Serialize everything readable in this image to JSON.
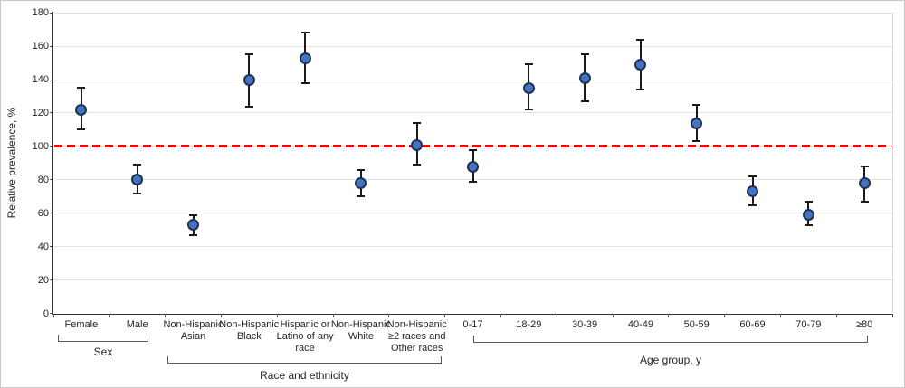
{
  "chart_data": {
    "type": "scatter",
    "title": "",
    "xlabel": "",
    "ylabel": "Relative prevalence, %",
    "ylim": [
      0,
      180
    ],
    "y_ticks": [
      0,
      20,
      40,
      60,
      80,
      100,
      120,
      140,
      160,
      180
    ],
    "grid": true,
    "legend": "none",
    "reference_line": {
      "y": 100,
      "color": "#FF0000",
      "style": "dashed"
    },
    "marker": {
      "fill": "#4472C4",
      "stroke": "#1F3250"
    },
    "groups": [
      {
        "label": "Sex",
        "start": 0,
        "end": 1
      },
      {
        "label": "Race and ethnicity",
        "start": 2,
        "end": 6
      },
      {
        "label": "Age group, y",
        "start": 7,
        "end": 14
      }
    ],
    "points": [
      {
        "category": "Female",
        "label_lines": [
          "Female"
        ],
        "value": 122,
        "ci_low": 110,
        "ci_high": 135
      },
      {
        "category": "Male",
        "label_lines": [
          "Male"
        ],
        "value": 80,
        "ci_low": 72,
        "ci_high": 89
      },
      {
        "category": "Non-Hispanic Asian",
        "label_lines": [
          "Non-Hispanic",
          "Asian"
        ],
        "value": 53,
        "ci_low": 47,
        "ci_high": 59
      },
      {
        "category": "Non-Hispanic Black",
        "label_lines": [
          "Non-Hispanic",
          "Black"
        ],
        "value": 140,
        "ci_low": 124,
        "ci_high": 155
      },
      {
        "category": "Hispanic or Latino of any race",
        "label_lines": [
          "Hispanic or",
          "Latino of any",
          "race"
        ],
        "value": 153,
        "ci_low": 138,
        "ci_high": 168
      },
      {
        "category": "Non-Hispanic White",
        "label_lines": [
          "Non-Hispanic",
          "White"
        ],
        "value": 78,
        "ci_low": 70,
        "ci_high": 86
      },
      {
        "category": "Non-Hispanic ≥2 races and Other races",
        "label_lines": [
          "Non-Hispanic",
          "≥2 races and",
          "Other races"
        ],
        "value": 101,
        "ci_low": 89,
        "ci_high": 114
      },
      {
        "category": "0-17",
        "label_lines": [
          "0-17"
        ],
        "value": 88,
        "ci_low": 79,
        "ci_high": 98
      },
      {
        "category": "18-29",
        "label_lines": [
          "18-29"
        ],
        "value": 135,
        "ci_low": 122,
        "ci_high": 149
      },
      {
        "category": "30-39",
        "label_lines": [
          "30-39"
        ],
        "value": 141,
        "ci_low": 127,
        "ci_high": 155
      },
      {
        "category": "40-49",
        "label_lines": [
          "40-49"
        ],
        "value": 149,
        "ci_low": 134,
        "ci_high": 164
      },
      {
        "category": "50-59",
        "label_lines": [
          "50-59"
        ],
        "value": 114,
        "ci_low": 103,
        "ci_high": 125
      },
      {
        "category": "60-69",
        "label_lines": [
          "60-69"
        ],
        "value": 73,
        "ci_low": 65,
        "ci_high": 82
      },
      {
        "category": "70-79",
        "label_lines": [
          "70-79"
        ],
        "value": 59,
        "ci_low": 53,
        "ci_high": 67
      },
      {
        "category": "≥80",
        "label_lines": [
          "≥80"
        ],
        "value": 78,
        "ci_low": 67,
        "ci_high": 88
      }
    ]
  }
}
